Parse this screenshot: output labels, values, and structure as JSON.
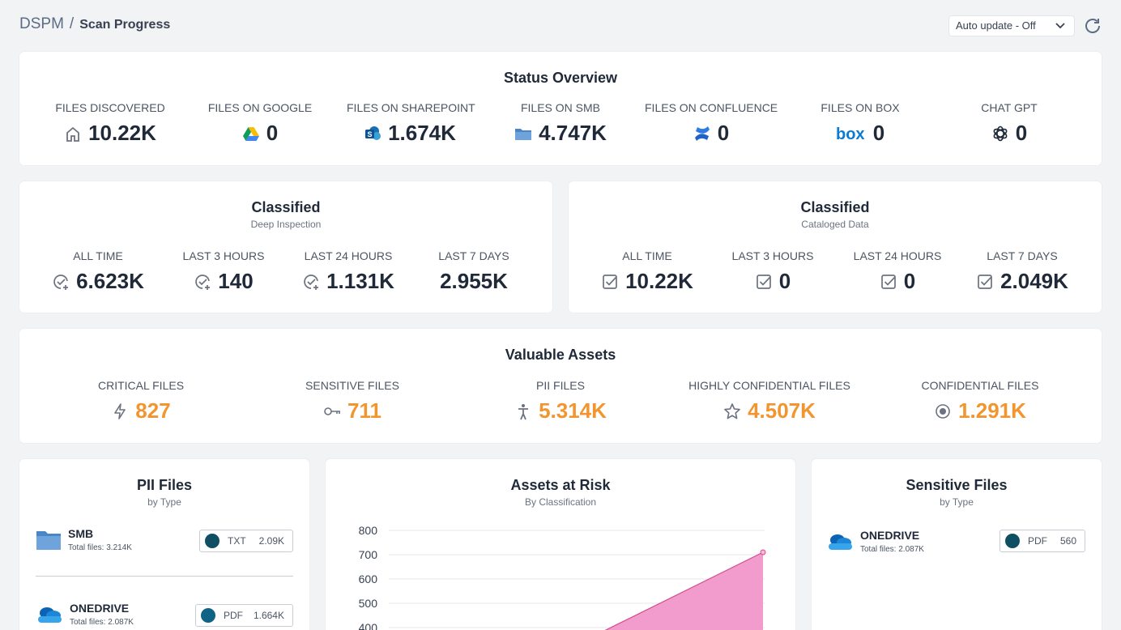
{
  "header": {
    "breadcrumb_root": "DSPM",
    "breadcrumb_sep": "/",
    "page_title": "Scan Progress",
    "auto_update_value": "Auto update - Off"
  },
  "status_overview": {
    "title": "Status Overview",
    "items": [
      {
        "label": "FILES DISCOVERED",
        "value": "10.22K",
        "icon": "home-icon"
      },
      {
        "label": "FILES ON GOOGLE",
        "value": "0",
        "icon": "google-drive-icon"
      },
      {
        "label": "FILES ON SHAREPOINT",
        "value": "1.674K",
        "icon": "sharepoint-icon"
      },
      {
        "label": "FILES ON SMB",
        "value": "4.747K",
        "icon": "folder-icon"
      },
      {
        "label": "FILES ON CONFLUENCE",
        "value": "0",
        "icon": "confluence-icon"
      },
      {
        "label": "FILES ON BOX",
        "value": "0",
        "icon": "box-icon"
      },
      {
        "label": "CHAT GPT",
        "value": "0",
        "icon": "openai-icon"
      }
    ]
  },
  "classified_deep": {
    "title": "Classified",
    "subtitle": "Deep Inspection",
    "items": [
      {
        "label": "ALL TIME",
        "value": "6.623K"
      },
      {
        "label": "LAST 3 HOURS",
        "value": "140"
      },
      {
        "label": "LAST 24 HOURS",
        "value": "1.131K"
      },
      {
        "label": "LAST 7 DAYS",
        "value": "2.955K"
      }
    ]
  },
  "classified_cataloged": {
    "title": "Classified",
    "subtitle": "Cataloged Data",
    "items": [
      {
        "label": "ALL TIME",
        "value": "10.22K"
      },
      {
        "label": "LAST 3 HOURS",
        "value": "0"
      },
      {
        "label": "LAST 24 HOURS",
        "value": "0"
      },
      {
        "label": "LAST 7 DAYS",
        "value": "2.049K"
      }
    ]
  },
  "valuable_assets": {
    "title": "Valuable Assets",
    "accent_color": "#f2952e",
    "items": [
      {
        "label": "CRITICAL FILES",
        "value": "827",
        "icon": "bolt-icon"
      },
      {
        "label": "SENSITIVE FILES",
        "value": "711",
        "icon": "key-icon"
      },
      {
        "label": "PII FILES",
        "value": "5.314K",
        "icon": "person-icon"
      },
      {
        "label": "HIGHLY CONFIDENTIAL FILES",
        "value": "4.507K",
        "icon": "star-icon"
      },
      {
        "label": "CONFIDENTIAL FILES",
        "value": "1.291K",
        "icon": "radio-icon"
      }
    ]
  },
  "pii_files": {
    "title": "PII Files",
    "subtitle": "by Type",
    "rows": [
      {
        "name": "SMB",
        "total": "Total files: 3.214K",
        "type": "TXT",
        "count": "2.09K",
        "dot_color": "#0e4f64",
        "icon": "folder-icon"
      },
      {
        "name": "ONEDRIVE",
        "total": "Total files: 2.087K",
        "type": "PDF",
        "count": "1.664K",
        "dot_color": "#0f6384",
        "icon": "onedrive-icon"
      }
    ]
  },
  "assets_at_risk": {
    "title": "Assets at Risk",
    "subtitle": "By Classification",
    "area_color": "#f29ccd",
    "line_color": "#d24b8c"
  },
  "chart_data": {
    "type": "area",
    "title": "Assets at Risk",
    "subtitle": "By Classification",
    "yticks": [
      800,
      700,
      600,
      500,
      400
    ],
    "ylim": [
      400,
      800
    ],
    "series": [
      {
        "values": [
          380,
          710
        ]
      }
    ],
    "grid": true
  },
  "sensitive_files": {
    "title": "Sensitive Files",
    "subtitle": "by Type",
    "rows": [
      {
        "name": "ONEDRIVE",
        "total": "Total files: 2.087K",
        "type": "PDF",
        "count": "560",
        "dot_color": "#0e4f64",
        "icon": "onedrive-icon"
      }
    ]
  }
}
